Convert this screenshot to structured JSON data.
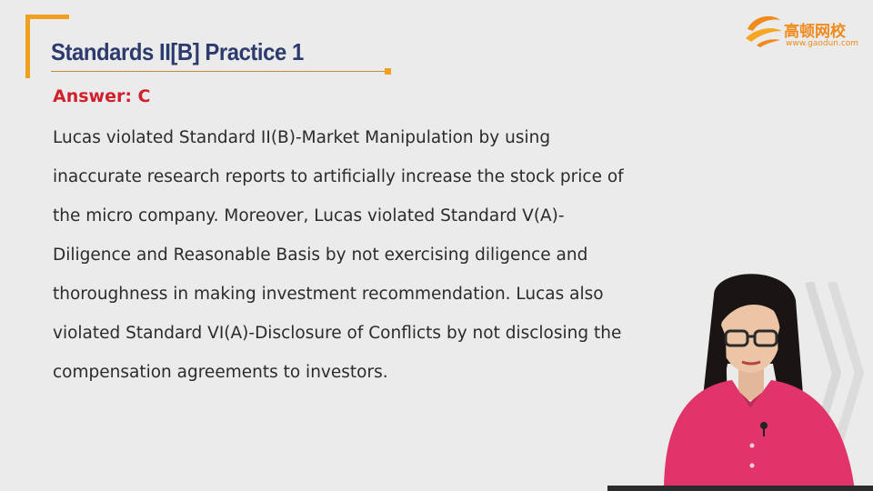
{
  "slide": {
    "title": "Standards II[B] Practice 1",
    "answer": "Answer: C",
    "body_lines": [
      "Lucas violated Standard II(B)-Market Manipulation by using",
      "inaccurate research reports to artificially increase the stock price of",
      "the micro company. Moreover, Lucas violated Standard V(A)-",
      "Diligence and Reasonable Basis by not exercising diligence and",
      "thoroughness in making investment recommendation. Lucas also",
      "violated Standard VI(A)-Disclosure of Conflicts by not disclosing the",
      "compensation agreements to investors."
    ]
  },
  "logo": {
    "name": "高顿网校",
    "url": "www.gaodun.com",
    "icon": "gaodun-logo-icon"
  },
  "presenter": {
    "icon": "presenter-photo"
  },
  "colors": {
    "accent": "#f0a01e",
    "title": "#2c3b6e",
    "answer": "#d0202e",
    "text": "#2b2b2b",
    "logo": "#f08a1c",
    "background": "#ebebeb"
  }
}
